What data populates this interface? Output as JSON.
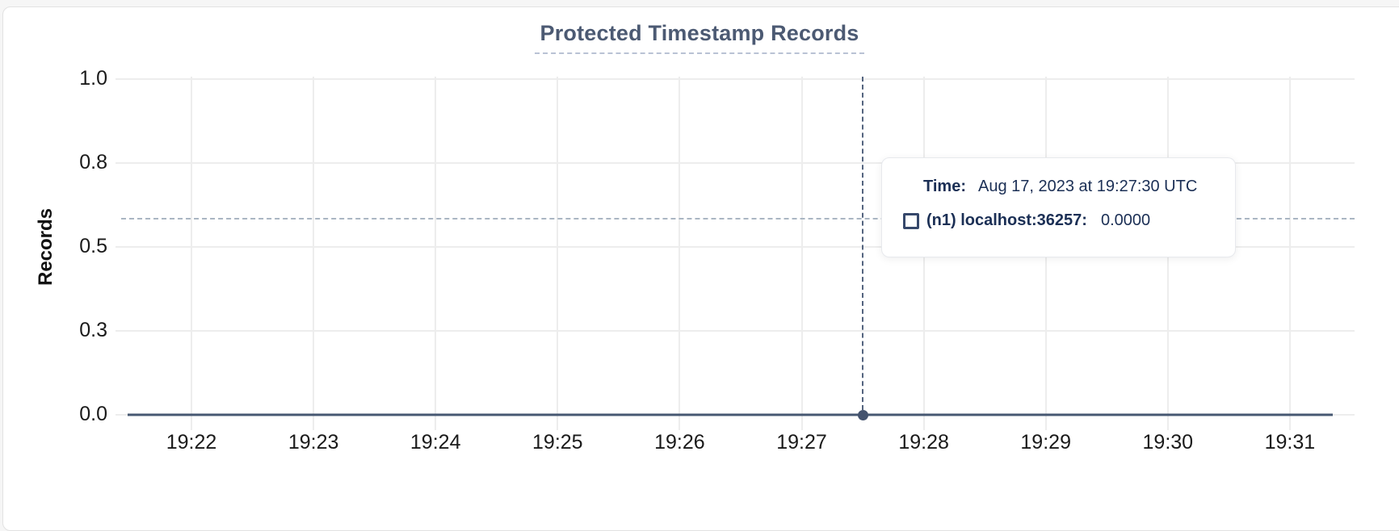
{
  "chart": {
    "title": "Protected Timestamp Records",
    "ylabel": "Records"
  },
  "tooltip": {
    "time_label": "Time:",
    "time_value": "Aug 17, 2023 at 19:27:30 UTC",
    "series_label": "(n1) localhost:36257:",
    "series_value": "0.0000"
  },
  "colors": {
    "accent_slate": "#4c5a73",
    "series_line": "#475872",
    "hover_dot": "#44536e",
    "grid": "#ededed",
    "tick_text": "#1a1a1a",
    "tooltip_text": "#1b2f55",
    "crosshair_vertical": "#54647f",
    "crosshair_horizontal": "#aab6c3",
    "title_underline": "#b9c2d4"
  },
  "chart_data": {
    "type": "line",
    "title": "Protected Timestamp Records",
    "xlabel": "",
    "ylabel": "Records",
    "x_tick_labels": [
      "19:22",
      "19:23",
      "19:24",
      "19:25",
      "19:26",
      "19:27",
      "19:28",
      "19:29",
      "19:30",
      "19:31"
    ],
    "y_tick_labels": [
      "1.0",
      "0.8",
      "0.5",
      "0.3",
      "0.0"
    ],
    "y_tick_values": [
      1.0,
      0.75,
      0.5,
      0.25,
      0.0
    ],
    "ylim": [
      0.0,
      1.0
    ],
    "grid": "on",
    "legend_position": "none",
    "series": [
      {
        "name": "(n1) localhost:36257",
        "values": [
          0,
          0,
          0,
          0,
          0,
          0,
          0,
          0,
          0,
          0
        ]
      }
    ],
    "hover": {
      "time": "Aug 17, 2023 at 19:27:30 UTC",
      "x_tick_index": 5.5,
      "value": 0.0
    }
  }
}
